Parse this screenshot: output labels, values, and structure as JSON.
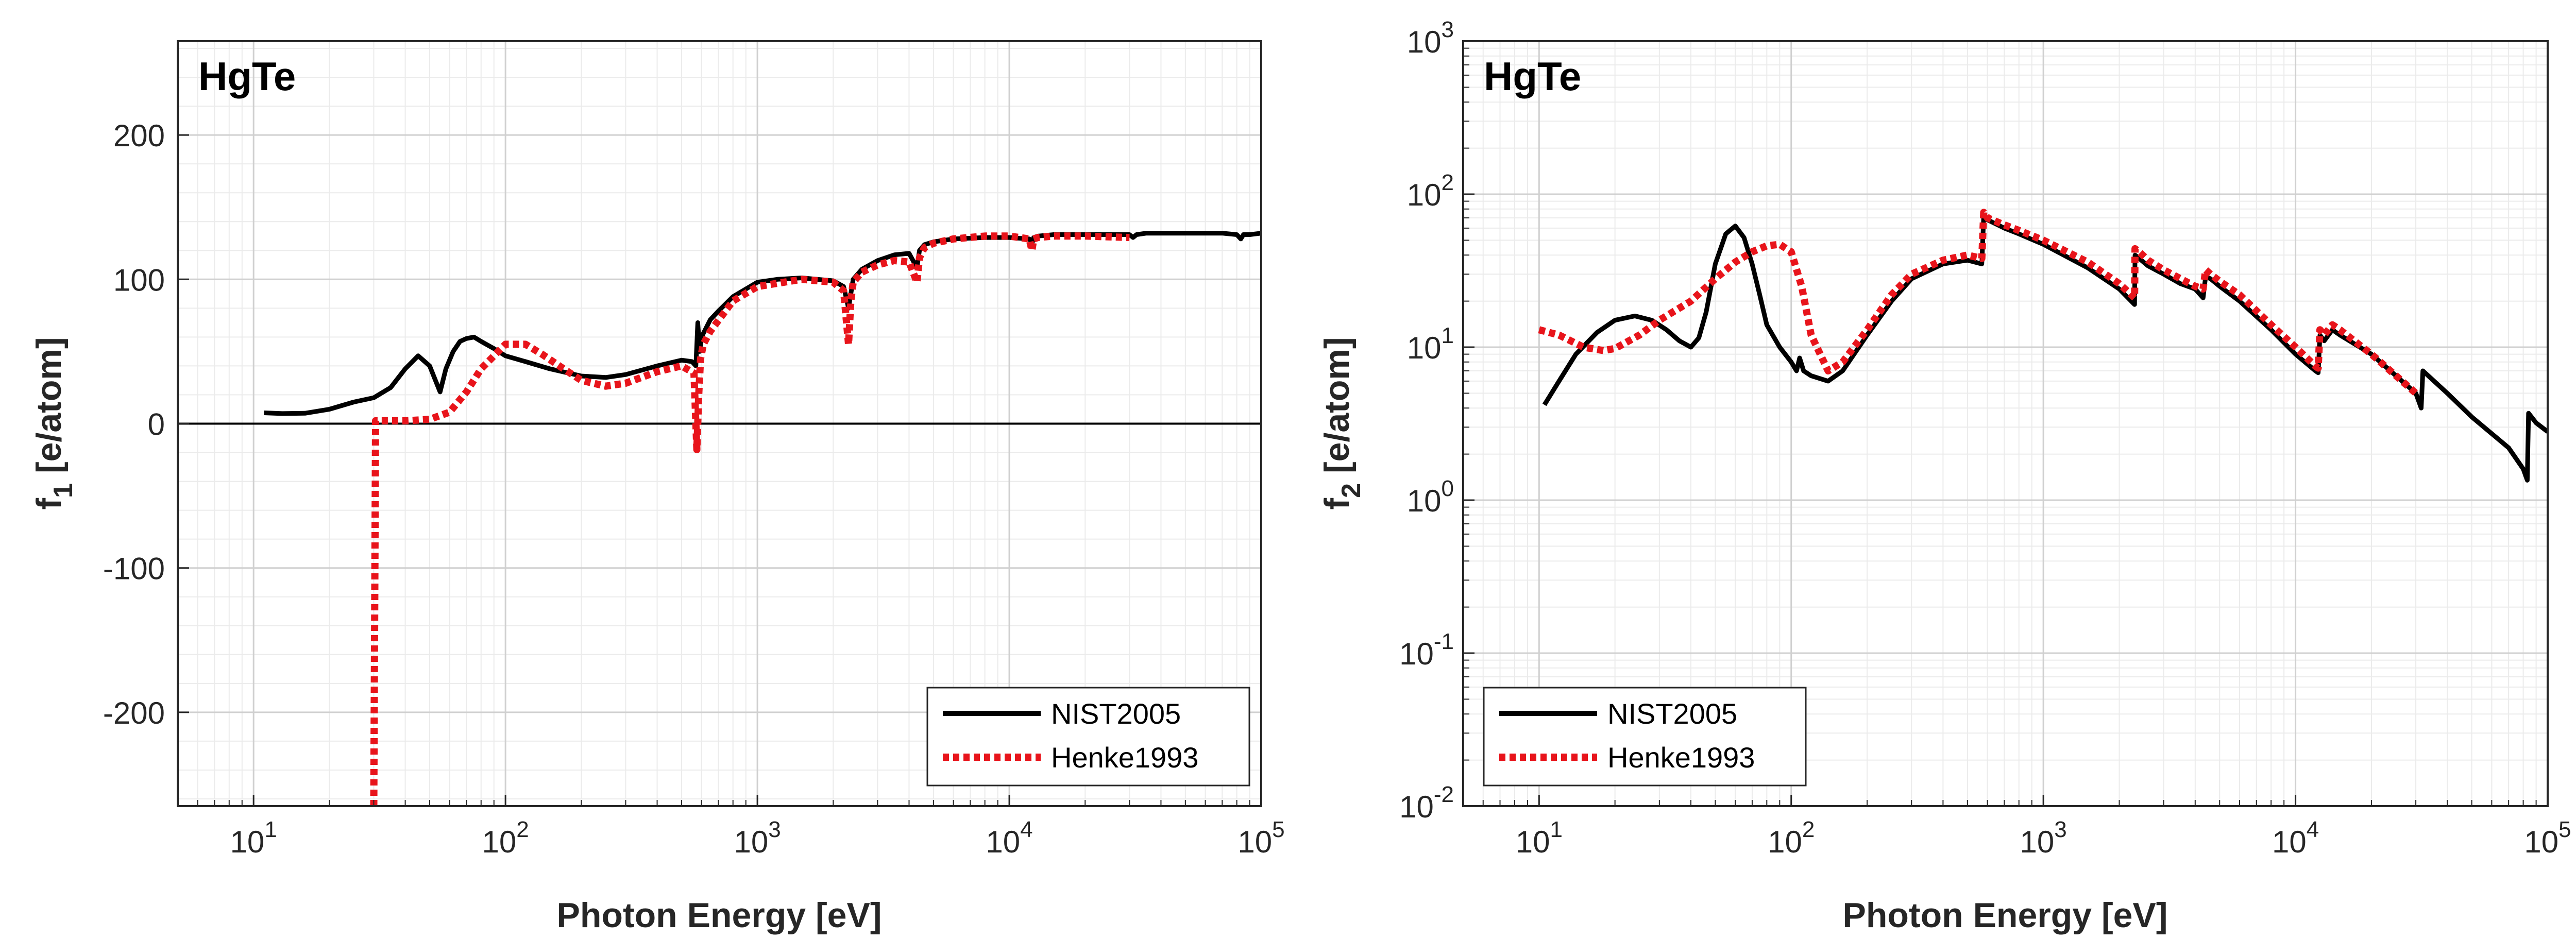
{
  "colors": {
    "nist": "#000000",
    "henke": "#e8141b",
    "axis": "#262626",
    "grid": "#d9d9d9"
  },
  "chart_data": [
    {
      "type": "line",
      "title": "HgTe",
      "xlabel": "Photon Energy [eV]",
      "ylabel_main": "f",
      "ylabel_sub": "1",
      "ylabel_rest": " [e/atom]",
      "xscale": "log",
      "yscale": "linear",
      "xlim": [
        5,
        100000
      ],
      "ylim": [
        -265,
        265
      ],
      "grid": true,
      "legend_position": "bottom-right",
      "x_ticks": [
        {
          "base": "10",
          "exp": "1"
        },
        {
          "base": "10",
          "exp": "2"
        },
        {
          "base": "10",
          "exp": "3"
        },
        {
          "base": "10",
          "exp": "4"
        },
        {
          "base": "10",
          "exp": "5"
        }
      ],
      "y_ticks": [
        "-200",
        "-100",
        "0",
        "100",
        "200"
      ],
      "y_tick_values": [
        -200,
        -100,
        0,
        100,
        200
      ],
      "zero_line": true,
      "series": [
        {
          "name": "NIST2005",
          "style": "solid",
          "x": [
            11,
            13,
            16,
            20,
            25,
            30,
            35,
            40,
            45,
            50,
            55,
            58,
            62,
            66,
            70,
            75,
            80,
            90,
            100,
            120,
            150,
            200,
            250,
            300,
            400,
            500,
            550,
            570,
            580,
            590,
            600,
            650,
            700,
            800,
            1000,
            1200,
            1500,
            2000,
            2200,
            2300,
            2400,
            2600,
            3000,
            3500,
            4000,
            4300,
            4400,
            4600,
            5000,
            6000,
            8000,
            10000,
            12000,
            12300,
            12500,
            13000,
            15000,
            20000,
            30000,
            31000,
            32000,
            35000,
            50000,
            70000,
            80000,
            83000,
            85000,
            90000,
            100000
          ],
          "y": [
            7.5,
            7,
            7.2,
            10,
            15,
            18,
            25,
            38,
            47,
            40,
            22,
            38,
            50,
            57,
            59,
            60,
            57,
            52,
            47,
            43,
            38,
            33,
            32,
            34,
            40,
            44,
            43,
            40,
            70,
            50,
            60,
            72,
            78,
            88,
            98,
            100,
            101,
            99,
            95,
            80,
            100,
            107,
            113,
            117,
            118,
            108,
            120,
            124,
            126,
            128,
            129,
            129,
            128,
            125,
            129,
            130,
            131,
            131,
            131,
            129,
            131,
            132,
            132,
            132,
            131,
            128,
            131,
            131,
            132
          ]
        },
        {
          "name": "Henke1993",
          "style": "dotted",
          "x": [
            30,
            30.5,
            32,
            40,
            50,
            60,
            70,
            80,
            100,
            120,
            140,
            170,
            200,
            250,
            300,
            400,
            500,
            560,
            575,
            585,
            595,
            610,
            650,
            800,
            1000,
            1500,
            2000,
            2200,
            2300,
            2350,
            2400,
            2600,
            3000,
            3500,
            4000,
            4300,
            4400,
            4600,
            5000,
            6000,
            8000,
            10000,
            12000,
            12300,
            12500,
            13000,
            15000,
            20000,
            30000
          ],
          "y": [
            -265,
            2,
            2,
            2,
            3,
            8,
            22,
            38,
            55,
            55,
            48,
            38,
            30,
            26,
            28,
            36,
            40,
            35,
            -18,
            20,
            45,
            55,
            64,
            85,
            95,
            100,
            98,
            92,
            55,
            85,
            98,
            105,
            110,
            113,
            112,
            98,
            115,
            122,
            125,
            128,
            130,
            130,
            128,
            120,
            128,
            129,
            130,
            130,
            129
          ]
        }
      ]
    },
    {
      "type": "line",
      "title": "HgTe",
      "xlabel": "Photon Energy [eV]",
      "ylabel_main": "f",
      "ylabel_sub": "2",
      "ylabel_rest": " [e/atom]",
      "xscale": "log",
      "yscale": "log",
      "xlim": [
        5,
        100000
      ],
      "ylim": [
        0.01,
        1000
      ],
      "grid": true,
      "legend_position": "bottom-left",
      "x_ticks": [
        {
          "base": "10",
          "exp": "1"
        },
        {
          "base": "10",
          "exp": "2"
        },
        {
          "base": "10",
          "exp": "3"
        },
        {
          "base": "10",
          "exp": "4"
        },
        {
          "base": "10",
          "exp": "5"
        }
      ],
      "y_ticks": [
        {
          "base": "10",
          "exp": "-2"
        },
        {
          "base": "10",
          "exp": "-1"
        },
        {
          "base": "10",
          "exp": "0"
        },
        {
          "base": "10",
          "exp": "1"
        },
        {
          "base": "10",
          "exp": "2"
        },
        {
          "base": "10",
          "exp": "3"
        }
      ],
      "series": [
        {
          "name": "NIST2005",
          "style": "solid",
          "x": [
            10.5,
            12,
            14,
            17,
            20,
            24,
            28,
            32,
            36,
            40,
            43,
            46,
            50,
            55,
            60,
            65,
            70,
            75,
            80,
            90,
            100,
            105,
            108,
            112,
            120,
            140,
            160,
            200,
            250,
            300,
            400,
            500,
            570,
            580,
            600,
            700,
            800,
            1000,
            1500,
            2000,
            2300,
            2310,
            2400,
            2600,
            3000,
            3500,
            4000,
            4300,
            4400,
            4600,
            5000,
            6000,
            8000,
            10000,
            12000,
            12300,
            12500,
            13000,
            14000,
            15000,
            20000,
            30000,
            31500,
            32000,
            40000,
            50000,
            70000,
            80000,
            83000,
            84000,
            90000,
            100000
          ],
          "y": [
            4.2,
            6,
            9,
            12.5,
            15,
            16,
            15,
            13,
            11,
            10,
            11.5,
            17,
            35,
            55,
            62,
            52,
            35,
            22,
            14,
            10,
            8,
            7,
            8.5,
            7,
            6.5,
            6,
            7,
            12,
            20,
            28,
            35,
            37,
            35,
            72,
            68,
            60,
            55,
            47,
            33,
            24,
            19,
            40,
            38,
            34,
            30,
            26,
            24,
            21,
            29,
            28,
            25,
            20,
            13,
            9,
            7,
            6.8,
            12,
            11,
            13,
            12,
            9,
            5,
            4,
            7,
            5,
            3.5,
            2.2,
            1.6,
            1.35,
            3.7,
            3.2,
            2.8
          ]
        },
        {
          "name": "Henke1993",
          "style": "dotted",
          "x": [
            10,
            12,
            15,
            18,
            20,
            25,
            30,
            40,
            50,
            60,
            70,
            80,
            90,
            100,
            110,
            120,
            140,
            160,
            200,
            250,
            300,
            400,
            500,
            570,
            580,
            600,
            700,
            800,
            1000,
            1500,
            2000,
            2300,
            2310,
            2400,
            2600,
            3000,
            3500,
            4000,
            4300,
            4400,
            4600,
            5000,
            6000,
            8000,
            10000,
            12000,
            12300,
            12500,
            13000,
            14000,
            15000,
            20000,
            30000
          ],
          "y": [
            13,
            12,
            10,
            9.5,
            9.8,
            12,
            15,
            20,
            28,
            36,
            42,
            46,
            47,
            42,
            25,
            12,
            7,
            8,
            13,
            22,
            30,
            37,
            40,
            38,
            76,
            70,
            63,
            58,
            50,
            36,
            26,
            21,
            44,
            42,
            37,
            32,
            28,
            25,
            24,
            32,
            30,
            27,
            22,
            14,
            10,
            7.5,
            7.3,
            13,
            12,
            14,
            13,
            9,
            5
          ]
        }
      ]
    }
  ]
}
